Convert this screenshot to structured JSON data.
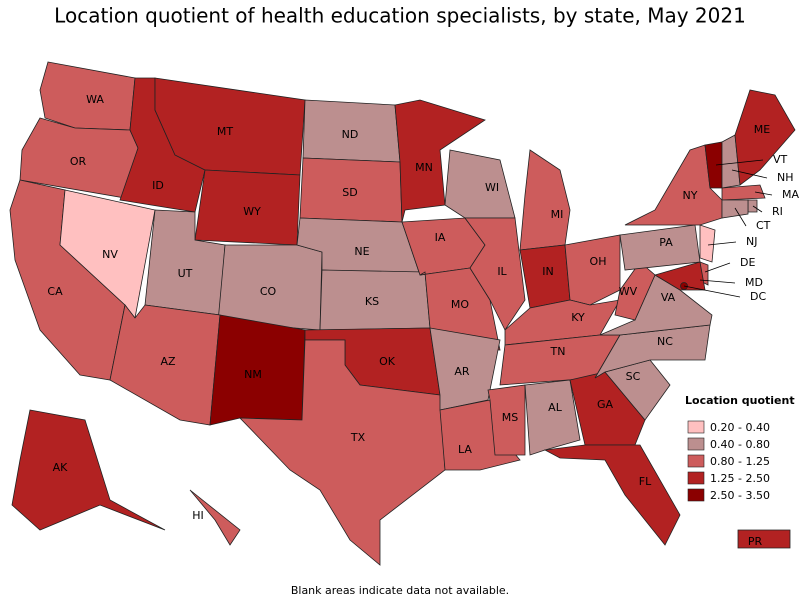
{
  "map": {
    "title": "Location quotient of health education specialists, by state, May 2021",
    "legend": {
      "title": "Location quotient",
      "bins": [
        {
          "label": "0.20 - 0.40",
          "color": "#ffc0c0"
        },
        {
          "label": "0.40 - 0.80",
          "color": "#bc8f8f"
        },
        {
          "label": "0.80 - 1.25",
          "color": "#cd5c5c"
        },
        {
          "label": "1.25 - 2.50",
          "color": "#b22222"
        },
        {
          "label": "2.50 - 3.50",
          "color": "#8b0000"
        }
      ]
    },
    "states": [
      {
        "label": "WA",
        "color": "#cd5c5c"
      },
      {
        "label": "OR",
        "color": "#cd5c5c"
      },
      {
        "label": "CA",
        "color": "#cd5c5c"
      },
      {
        "label": "NV",
        "color": "#ffc0c0"
      },
      {
        "label": "ID",
        "color": "#b22222"
      },
      {
        "label": "MT",
        "color": "#b22222"
      },
      {
        "label": "WY",
        "color": "#b22222"
      },
      {
        "label": "UT",
        "color": "#bc8f8f"
      },
      {
        "label": "CO",
        "color": "#bc8f8f"
      },
      {
        "label": "AZ",
        "color": "#cd5c5c"
      },
      {
        "label": "NM",
        "color": "#8b0000"
      },
      {
        "label": "ND",
        "color": "#bc8f8f"
      },
      {
        "label": "SD",
        "color": "#cd5c5c"
      },
      {
        "label": "NE",
        "color": "#bc8f8f"
      },
      {
        "label": "KS",
        "color": "#bc8f8f"
      },
      {
        "label": "OK",
        "color": "#b22222"
      },
      {
        "label": "TX",
        "color": "#cd5c5c"
      },
      {
        "label": "MN",
        "color": "#b22222"
      },
      {
        "label": "IA",
        "color": "#cd5c5c"
      },
      {
        "label": "MO",
        "color": "#cd5c5c"
      },
      {
        "label": "AR",
        "color": "#bc8f8f"
      },
      {
        "label": "LA",
        "color": "#cd5c5c"
      },
      {
        "label": "WI",
        "color": "#bc8f8f"
      },
      {
        "label": "IL",
        "color": "#cd5c5c"
      },
      {
        "label": "MI",
        "color": "#cd5c5c"
      },
      {
        "label": "IN",
        "color": "#b22222"
      },
      {
        "label": "OH",
        "color": "#cd5c5c"
      },
      {
        "label": "KY",
        "color": "#cd5c5c"
      },
      {
        "label": "TN",
        "color": "#cd5c5c"
      },
      {
        "label": "MS",
        "color": "#cd5c5c"
      },
      {
        "label": "AL",
        "color": "#bc8f8f"
      },
      {
        "label": "GA",
        "color": "#b22222"
      },
      {
        "label": "FL",
        "color": "#b22222"
      },
      {
        "label": "SC",
        "color": "#bc8f8f"
      },
      {
        "label": "NC",
        "color": "#bc8f8f"
      },
      {
        "label": "VA",
        "color": "#bc8f8f"
      },
      {
        "label": "WV",
        "color": "#cd5c5c"
      },
      {
        "label": "PA",
        "color": "#bc8f8f"
      },
      {
        "label": "NY",
        "color": "#cd5c5c"
      },
      {
        "label": "VT",
        "color": "#8b0000"
      },
      {
        "label": "NH",
        "color": "#bc8f8f"
      },
      {
        "label": "ME",
        "color": "#b22222"
      },
      {
        "label": "MA",
        "color": "#cd5c5c"
      },
      {
        "label": "RI",
        "color": "#bc8f8f"
      },
      {
        "label": "CT",
        "color": "#bc8f8f"
      },
      {
        "label": "NJ",
        "color": "#ffc0c0"
      },
      {
        "label": "DE",
        "color": "#cd5c5c"
      },
      {
        "label": "MD",
        "color": "#b22222"
      },
      {
        "label": "DC",
        "color": "#8b0000"
      },
      {
        "label": "AK",
        "color": "#b22222"
      },
      {
        "label": "HI",
        "color": "#cd5c5c"
      },
      {
        "label": "PR",
        "color": "#b22222"
      }
    ],
    "footnote": "Blank areas indicate data not available."
  }
}
